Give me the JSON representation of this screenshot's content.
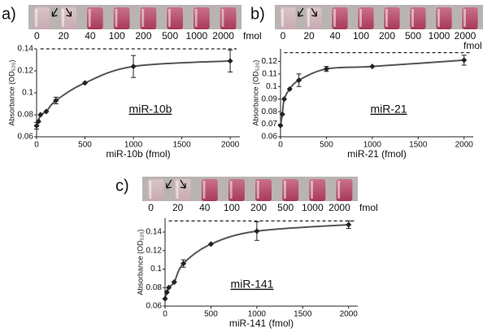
{
  "chart_data": [
    {
      "type": "scatter",
      "panel": "a)",
      "tube_labels": [
        "0",
        "20",
        "40",
        "100",
        "200",
        "500",
        "1000",
        "2000"
      ],
      "tube_unit": "fmol",
      "annotation": "miR-10b",
      "x_label": "miR-10b (fmol)",
      "y_label": "Absorbance (OD₅₂₀)",
      "x": [
        0,
        20,
        40,
        100,
        200,
        500,
        1000,
        2000
      ],
      "values": [
        0.07,
        0.074,
        0.08,
        0.083,
        0.093,
        0.109,
        0.124,
        0.129
      ],
      "errors": [
        0.003,
        0,
        0,
        0,
        0.003,
        0,
        0.01,
        0.01
      ],
      "reference_line": 0.14,
      "color": "#222",
      "xlim": [
        0,
        2100
      ],
      "xticks": [
        0,
        500,
        1000,
        1500,
        2000
      ],
      "ylim": [
        0.06,
        0.14
      ],
      "yticks": [
        0.06,
        0.08,
        0.1,
        0.12,
        0.14
      ]
    },
    {
      "type": "scatter",
      "panel": "b)",
      "tube_labels": [
        "0",
        "20",
        "40",
        "100",
        "200",
        "500",
        "1000",
        "2000"
      ],
      "tube_unit": "fmol",
      "annotation": "miR-21",
      "x_label": "miR-21 (fmol)",
      "y_label": "Absorbance (OD₅₂₀)",
      "x": [
        0,
        20,
        40,
        100,
        200,
        500,
        1000,
        2000
      ],
      "values": [
        0.069,
        0.078,
        0.09,
        0.098,
        0.105,
        0.114,
        0.116,
        0.121
      ],
      "errors": [
        0,
        0,
        0,
        0,
        0.005,
        0.002,
        0,
        0.004
      ],
      "reference_line": 0.127,
      "color": "#222",
      "xlim": [
        0,
        2100
      ],
      "xticks": [
        0,
        500,
        1000,
        1500,
        2000
      ],
      "ylim": [
        0.06,
        0.13
      ],
      "yticks": [
        0.06,
        0.07,
        0.08,
        0.09,
        0.1,
        0.11,
        0.12
      ]
    },
    {
      "type": "scatter",
      "panel": "c)",
      "tube_labels": [
        "0",
        "20",
        "40",
        "100",
        "200",
        "500",
        "1000",
        "2000"
      ],
      "tube_unit": "fmol",
      "annotation": "miR-141",
      "x_label": "miR-141 (fmol)",
      "y_label": "Absorbance (OD₅₂₀)",
      "x": [
        0,
        20,
        40,
        100,
        200,
        500,
        1000,
        2000
      ],
      "values": [
        0.068,
        0.075,
        0.08,
        0.086,
        0.106,
        0.127,
        0.141,
        0.148
      ],
      "errors": [
        0,
        0,
        0,
        0,
        0.004,
        0,
        0.01,
        0.004
      ],
      "reference_line": 0.152,
      "color": "#222",
      "xlim": [
        0,
        2100
      ],
      "xticks": [
        0,
        500,
        1000,
        1500,
        2000
      ],
      "ylim": [
        0.06,
        0.155
      ],
      "yticks": [
        0.06,
        0.08,
        0.1,
        0.12,
        0.14
      ]
    }
  ]
}
